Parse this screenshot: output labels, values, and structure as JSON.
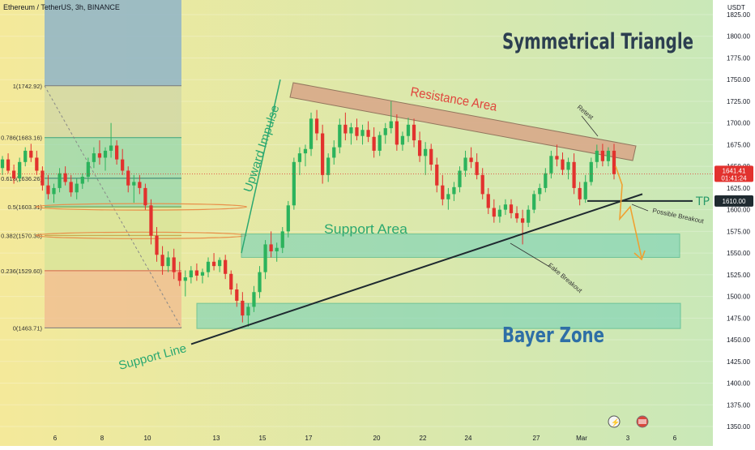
{
  "header": {
    "symbol_line": "Ethereum / TetherUS, 3h, BINANCE",
    "currency": "USDT"
  },
  "colors": {
    "bg_left": "#f4e99a",
    "bg_right": "#c9e8b8",
    "candle_up": "#2cb35c",
    "candle_down": "#e2322e",
    "resistance_fill": "#d9a98a",
    "support_fill": "#7fd4b8",
    "fib_top": "#8fb4c8",
    "fib_green": "#8fd6b0",
    "fib_orange": "#f0b990",
    "title_color": "#2c3e50",
    "bayer_color": "#2e6fa6",
    "resistance_text": "#e0443c",
    "support_text": "#2aa870",
    "projection": "#f0a030"
  },
  "annotations": {
    "title": "Symmetrical Triangle",
    "resistance_area": "Resistance Area",
    "support_area": "Support Area",
    "bayer_zone": "Bayer Zone",
    "support_line": "Support Line",
    "upward_impulse": "Upward Impulse",
    "retest": "Retest",
    "fake_breakout": "Fake Breakout",
    "possible_breakout": "Possible Breakout",
    "tp1": "TP 1"
  },
  "chart_data": {
    "type": "candlestick",
    "symbol": "Ethereum / TetherUS",
    "timeframe": "3h",
    "exchange": "BINANCE",
    "ylim": [
      1350,
      1850
    ],
    "y_ticks": [
      1350,
      1375,
      1400,
      1425,
      1450,
      1475,
      1500,
      1525,
      1550,
      1575,
      1600,
      1625,
      1650,
      1675,
      1700,
      1725,
      1750,
      1775,
      1800,
      1825
    ],
    "y_tick_labels": [
      "1350.00",
      "1375.00",
      "1400.00",
      "1425.00",
      "1450.00",
      "1475.00",
      "1500.00",
      "1525.00",
      "1550.00",
      "1575.00",
      "1600.00",
      "1625.00",
      "1650.00",
      "1675.00",
      "1700.00",
      "1725.00",
      "1750.00",
      "1775.00",
      "1800.00",
      "1825.00"
    ],
    "x_labels": [
      "6",
      "8",
      "10",
      "13",
      "15",
      "17",
      "20",
      "22",
      "24",
      "27",
      "Mar",
      "3",
      "6"
    ],
    "current_price": "1641.41",
    "countdown": "01:41:24",
    "tp_price": "1610.00",
    "fib_levels": [
      {
        "label": "1(1742.92)",
        "ratio": 1,
        "price": 1742.92
      },
      {
        "label": "0.786(1683.16)",
        "ratio": 0.786,
        "price": 1683.16
      },
      {
        "label": "0.618(1636.26)",
        "ratio": 0.618,
        "price": 1636.26
      },
      {
        "label": "0.5(1603.31)",
        "ratio": 0.5,
        "price": 1603.31
      },
      {
        "label": "0.382(1570.36)",
        "ratio": 0.382,
        "price": 1570.36
      },
      {
        "label": "0.236(1529.60)",
        "ratio": 0.236,
        "price": 1529.6
      },
      {
        "label": "0(1463.71)",
        "ratio": 0,
        "price": 1463.71
      }
    ],
    "zones": {
      "support_area": [
        1545,
        1572
      ],
      "bayer_zone": [
        1463,
        1492
      ]
    },
    "candles": [
      [
        1648,
        1662,
        1640,
        1658
      ],
      [
        1658,
        1665,
        1642,
        1645
      ],
      [
        1645,
        1652,
        1630,
        1636
      ],
      [
        1636,
        1660,
        1632,
        1655
      ],
      [
        1655,
        1672,
        1650,
        1668
      ],
      [
        1668,
        1676,
        1655,
        1660
      ],
      [
        1660,
        1668,
        1640,
        1645
      ],
      [
        1645,
        1650,
        1622,
        1628
      ],
      [
        1628,
        1640,
        1612,
        1618
      ],
      [
        1618,
        1630,
        1608,
        1625
      ],
      [
        1625,
        1648,
        1620,
        1642
      ],
      [
        1642,
        1650,
        1628,
        1632
      ],
      [
        1632,
        1640,
        1615,
        1620
      ],
      [
        1620,
        1636,
        1612,
        1630
      ],
      [
        1630,
        1642,
        1624,
        1638
      ],
      [
        1638,
        1660,
        1632,
        1655
      ],
      [
        1655,
        1672,
        1648,
        1665
      ],
      [
        1665,
        1680,
        1652,
        1660
      ],
      [
        1660,
        1672,
        1645,
        1668
      ],
      [
        1668,
        1700,
        1660,
        1674
      ],
      [
        1674,
        1680,
        1652,
        1658
      ],
      [
        1658,
        1670,
        1640,
        1645
      ],
      [
        1645,
        1650,
        1620,
        1628
      ],
      [
        1628,
        1640,
        1608,
        1632
      ],
      [
        1632,
        1640,
        1618,
        1625
      ],
      [
        1625,
        1630,
        1600,
        1605
      ],
      [
        1605,
        1612,
        1560,
        1570
      ],
      [
        1570,
        1580,
        1540,
        1548
      ],
      [
        1548,
        1558,
        1525,
        1535
      ],
      [
        1535,
        1552,
        1528,
        1545
      ],
      [
        1545,
        1555,
        1520,
        1528
      ],
      [
        1528,
        1540,
        1512,
        1518
      ],
      [
        1518,
        1530,
        1500,
        1522
      ],
      [
        1522,
        1535,
        1515,
        1530
      ],
      [
        1530,
        1538,
        1518,
        1524
      ],
      [
        1524,
        1532,
        1515,
        1528
      ],
      [
        1528,
        1545,
        1522,
        1540
      ],
      [
        1540,
        1550,
        1530,
        1535
      ],
      [
        1535,
        1545,
        1528,
        1542
      ],
      [
        1542,
        1548,
        1520,
        1526
      ],
      [
        1526,
        1530,
        1502,
        1508
      ],
      [
        1508,
        1515,
        1488,
        1495
      ],
      [
        1495,
        1505,
        1470,
        1478
      ],
      [
        1478,
        1492,
        1465,
        1488
      ],
      [
        1488,
        1512,
        1482,
        1505
      ],
      [
        1505,
        1535,
        1498,
        1528
      ],
      [
        1528,
        1565,
        1520,
        1560
      ],
      [
        1560,
        1575,
        1545,
        1552
      ],
      [
        1552,
        1562,
        1540,
        1556
      ],
      [
        1556,
        1580,
        1550,
        1575
      ],
      [
        1575,
        1610,
        1568,
        1605
      ],
      [
        1605,
        1660,
        1600,
        1655
      ],
      [
        1655,
        1672,
        1640,
        1665
      ],
      [
        1665,
        1675,
        1650,
        1670
      ],
      [
        1670,
        1712,
        1662,
        1705
      ],
      [
        1705,
        1715,
        1680,
        1688
      ],
      [
        1688,
        1698,
        1630,
        1640
      ],
      [
        1640,
        1665,
        1632,
        1660
      ],
      [
        1660,
        1680,
        1652,
        1672
      ],
      [
        1672,
        1705,
        1665,
        1698
      ],
      [
        1698,
        1712,
        1680,
        1688
      ],
      [
        1688,
        1700,
        1675,
        1695
      ],
      [
        1695,
        1705,
        1680,
        1685
      ],
      [
        1685,
        1698,
        1675,
        1692
      ],
      [
        1692,
        1702,
        1678,
        1684
      ],
      [
        1684,
        1695,
        1660,
        1668
      ],
      [
        1668,
        1690,
        1662,
        1686
      ],
      [
        1686,
        1700,
        1676,
        1694
      ],
      [
        1694,
        1725,
        1688,
        1702
      ],
      [
        1702,
        1710,
        1668,
        1675
      ],
      [
        1675,
        1690,
        1668,
        1685
      ],
      [
        1685,
        1706,
        1678,
        1698
      ],
      [
        1698,
        1705,
        1672,
        1680
      ],
      [
        1680,
        1690,
        1655,
        1662
      ],
      [
        1662,
        1678,
        1640,
        1670
      ],
      [
        1670,
        1676,
        1645,
        1652
      ],
      [
        1652,
        1660,
        1620,
        1628
      ],
      [
        1628,
        1640,
        1605,
        1612
      ],
      [
        1612,
        1625,
        1600,
        1618
      ],
      [
        1618,
        1632,
        1610,
        1626
      ],
      [
        1626,
        1650,
        1620,
        1645
      ],
      [
        1645,
        1668,
        1638,
        1660
      ],
      [
        1660,
        1672,
        1648,
        1655
      ],
      [
        1655,
        1665,
        1635,
        1640
      ],
      [
        1640,
        1648,
        1612,
        1618
      ],
      [
        1618,
        1625,
        1595,
        1602
      ],
      [
        1602,
        1612,
        1585,
        1592
      ],
      [
        1592,
        1605,
        1585,
        1600
      ],
      [
        1600,
        1612,
        1594,
        1606
      ],
      [
        1606,
        1612,
        1590,
        1596
      ],
      [
        1596,
        1604,
        1585,
        1590
      ],
      [
        1590,
        1600,
        1560,
        1585
      ],
      [
        1585,
        1605,
        1580,
        1600
      ],
      [
        1600,
        1622,
        1596,
        1618
      ],
      [
        1618,
        1630,
        1610,
        1625
      ],
      [
        1625,
        1648,
        1620,
        1642
      ],
      [
        1642,
        1668,
        1636,
        1662
      ],
      [
        1662,
        1675,
        1650,
        1658
      ],
      [
        1658,
        1666,
        1640,
        1646
      ],
      [
        1646,
        1660,
        1635,
        1655
      ],
      [
        1655,
        1665,
        1618,
        1625
      ],
      [
        1625,
        1632,
        1605,
        1612
      ],
      [
        1612,
        1640,
        1608,
        1632
      ],
      [
        1632,
        1660,
        1628,
        1655
      ],
      [
        1655,
        1675,
        1648,
        1668
      ],
      [
        1668,
        1676,
        1650,
        1656
      ],
      [
        1656,
        1672,
        1650,
        1668
      ],
      [
        1668,
        1676,
        1635,
        1641
      ]
    ]
  }
}
